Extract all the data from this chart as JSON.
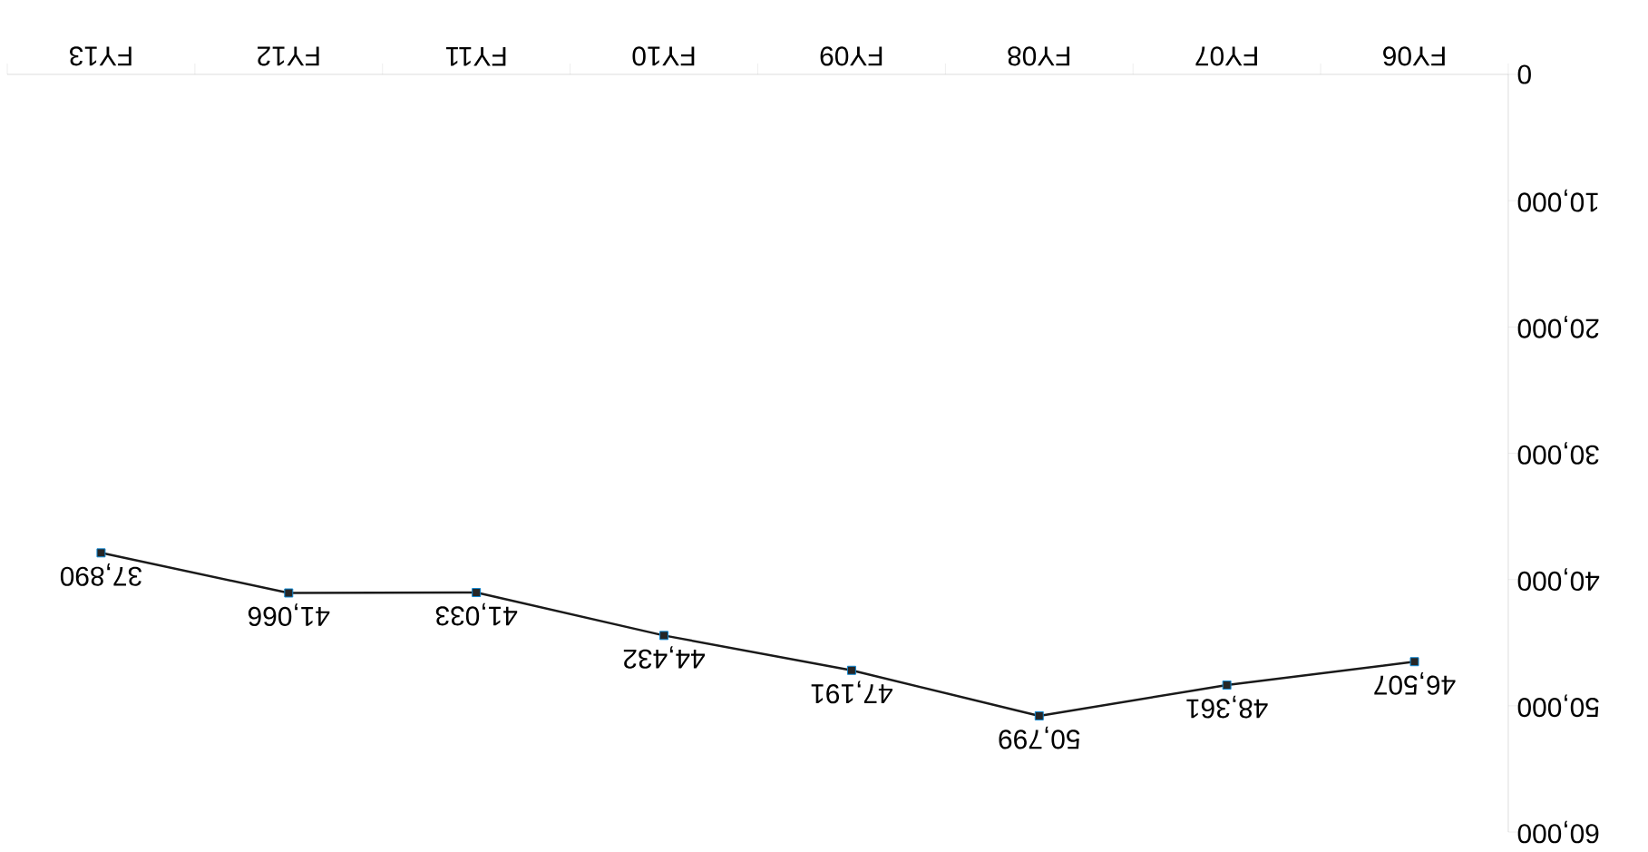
{
  "chart_data": {
    "type": "line",
    "categories": [
      "FY13",
      "FY12",
      "FY11",
      "FY10",
      "FY09",
      "FY08",
      "FY07",
      "FY06"
    ],
    "values": [
      37890,
      41066,
      41033,
      44432,
      47191,
      50799,
      48361,
      46507
    ],
    "value_labels": [
      "37,890",
      "41,066",
      "41,033",
      "44,432",
      "47,191",
      "50,799",
      "48,361",
      "46,507"
    ],
    "color": "#1a1a1a",
    "marker": "square",
    "ylim": [
      60000,
      0
    ],
    "yticks": [
      0,
      {
        "value": 10000,
        "label": "10,000"
      },
      {
        "value": 20000,
        "label": "20,000"
      },
      {
        "value": 30000,
        "label": "30,000"
      },
      {
        "value": 40000,
        "label": "40,000"
      },
      {
        "value": 50000,
        "label": "50,000"
      },
      {
        "value": 60000,
        "label": "60,000"
      }
    ]
  }
}
